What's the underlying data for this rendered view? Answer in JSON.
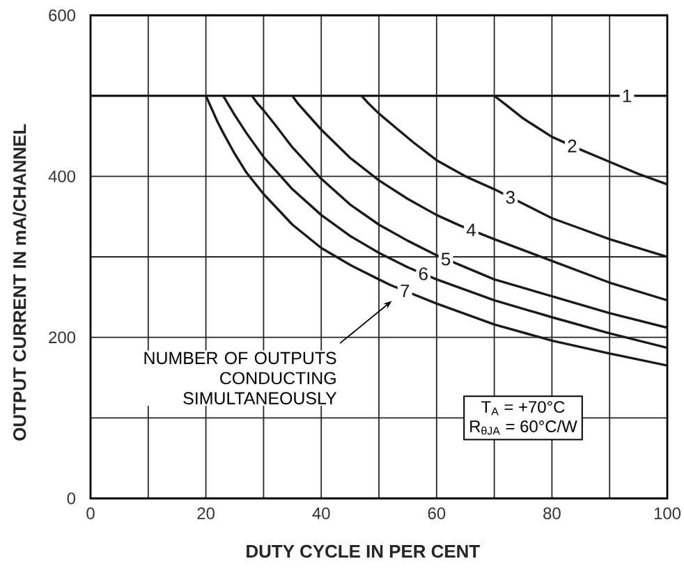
{
  "chart_data": {
    "type": "line",
    "xlabel": "DUTY CYCLE IN PER CENT",
    "ylabel": "OUTPUT CURRENT IN mA/CHANNEL",
    "xlim": [
      0,
      100
    ],
    "ylim": [
      0,
      600
    ],
    "xticks": [
      0,
      {
        "value": 10,
        "label": null
      },
      20,
      {
        "value": 30,
        "label": null
      },
      40,
      {
        "value": 50,
        "label": null
      },
      60,
      {
        "value": 70,
        "label": null
      },
      80,
      {
        "value": 90,
        "label": null
      },
      100
    ],
    "yticks": [
      0,
      {
        "value": 100,
        "label": null
      },
      200,
      {
        "value": 300,
        "label": null
      },
      400,
      600
    ],
    "grid": true,
    "series": [
      {
        "name": "1",
        "color": "#1a1a1a",
        "x": [
          0,
          100
        ],
        "values": [
          500,
          500
        ]
      },
      {
        "name": "2",
        "color": "#1a1a1a",
        "x": [
          70,
          72,
          75,
          80,
          85,
          90,
          95,
          100
        ],
        "values": [
          500,
          489,
          472,
          449,
          433,
          418,
          403,
          390
        ]
      },
      {
        "name": "3",
        "color": "#1a1a1a",
        "x": [
          47,
          48,
          50,
          53,
          56,
          60,
          65,
          70,
          75,
          80,
          85,
          90,
          95,
          100
        ],
        "values": [
          500,
          492,
          478,
          460,
          442,
          420,
          400,
          384,
          366,
          348,
          335,
          322,
          311,
          300
        ]
      },
      {
        "name": "4",
        "color": "#1a1a1a",
        "x": [
          35,
          36,
          38,
          40,
          45,
          50,
          55,
          60,
          64,
          70,
          80,
          90,
          100
        ],
        "values": [
          500,
          490,
          474,
          458,
          423,
          395,
          372,
          352,
          339,
          322,
          295,
          268,
          246
        ]
      },
      {
        "name": "5",
        "color": "#1a1a1a",
        "x": [
          28,
          29,
          30,
          32,
          35,
          40,
          45,
          50,
          55,
          60,
          70,
          80,
          90,
          100
        ],
        "values": [
          500,
          490,
          482,
          464,
          436,
          397,
          365,
          340,
          320,
          302,
          272,
          251,
          230,
          212
        ]
      },
      {
        "name": "6",
        "color": "#1a1a1a",
        "x": [
          23,
          24,
          25,
          27,
          30,
          35,
          40,
          45,
          50,
          55,
          60,
          70,
          80,
          90,
          100
        ],
        "values": [
          500,
          488,
          476,
          454,
          424,
          384,
          352,
          326,
          305,
          287,
          272,
          246,
          225,
          205,
          187
        ]
      },
      {
        "name": "7",
        "color": "#1a1a1a",
        "x": [
          20,
          21,
          22,
          23,
          25,
          27,
          30,
          35,
          40,
          45,
          50,
          52,
          60,
          70,
          80,
          90,
          100
        ],
        "values": [
          500,
          484,
          468,
          454,
          428,
          405,
          378,
          340,
          311,
          290,
          272,
          265,
          242,
          216,
          196,
          180,
          165
        ]
      }
    ],
    "annotations": [
      "NUMBER OF OUTPUTS CONDUCTING SIMULTANEOUSLY",
      "T$_{A}$ = +70°C",
      "R$_{θJA}$ = 60°C/W"
    ]
  }
}
